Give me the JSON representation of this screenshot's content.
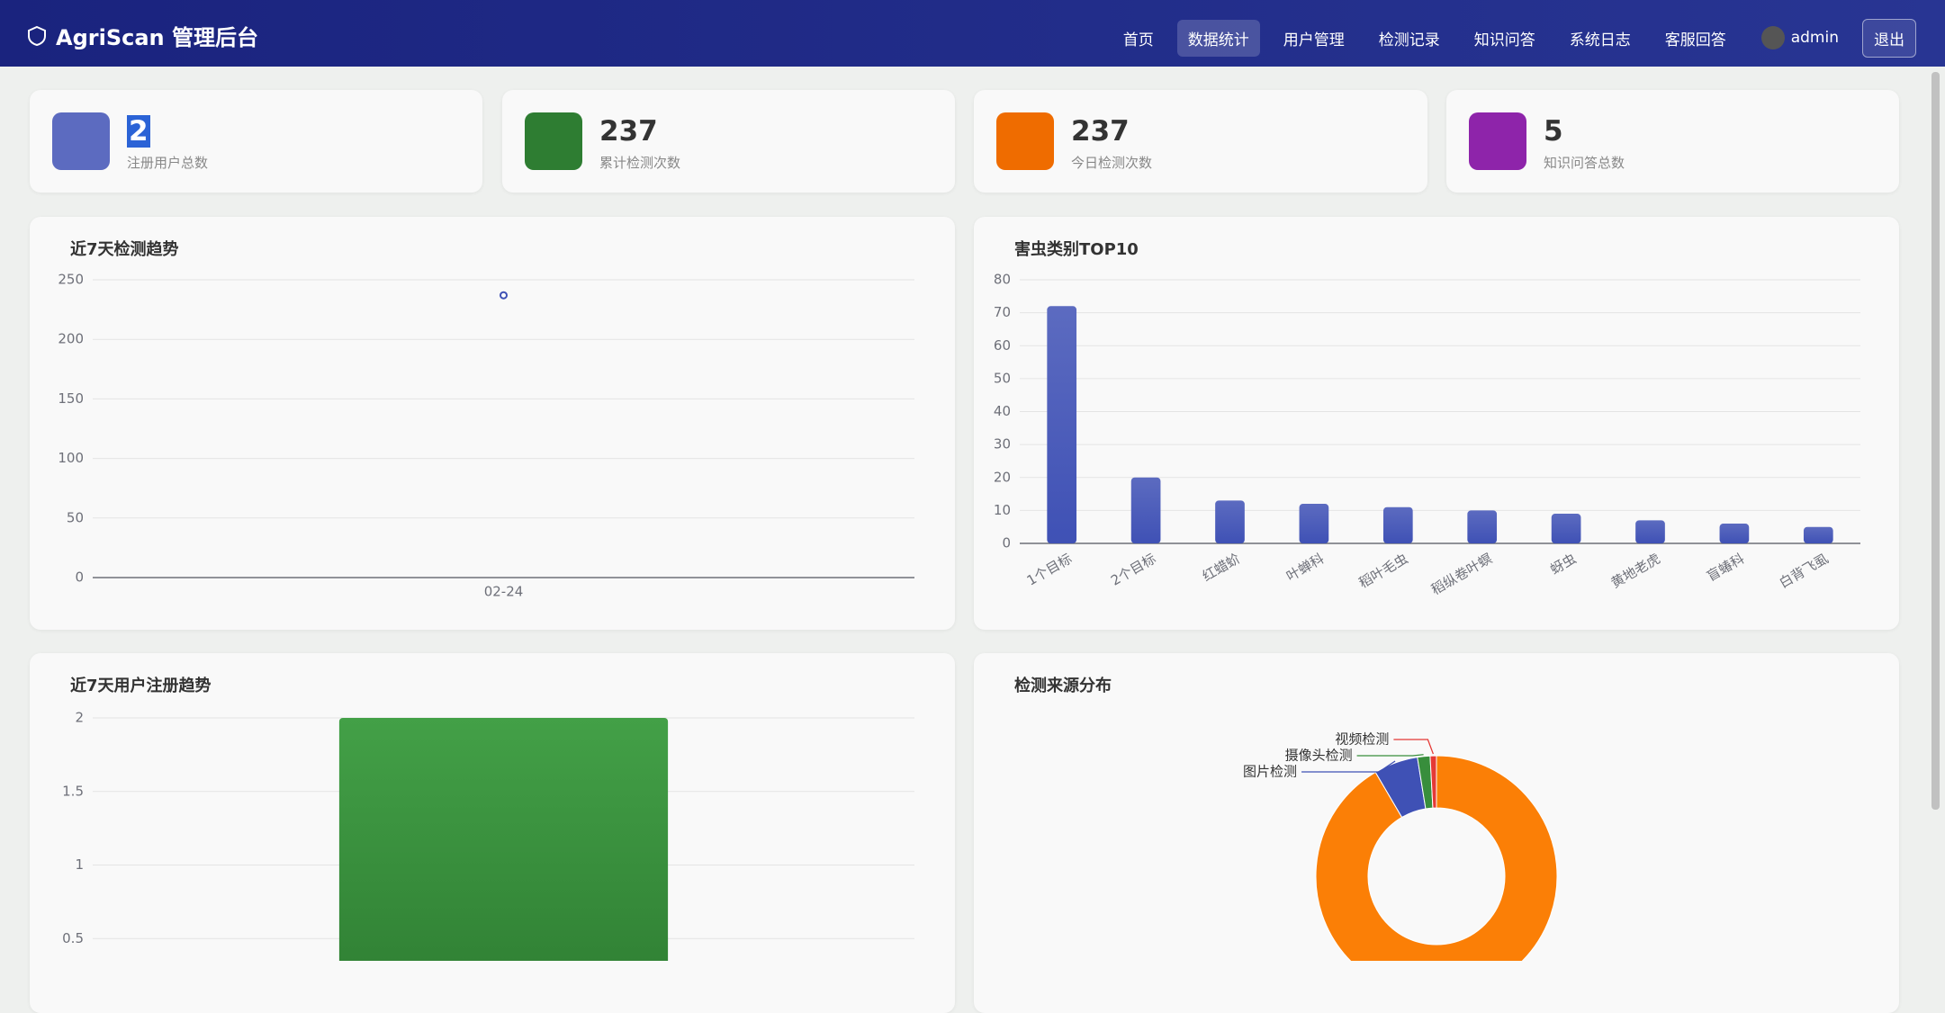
{
  "header": {
    "title": "AgriScan 管理后台",
    "nav": [
      "首页",
      "数据统计",
      "用户管理",
      "检测记录",
      "知识问答",
      "系统日志",
      "客服回答"
    ],
    "user": "admin",
    "logout": "退出"
  },
  "stats": [
    {
      "value": 2,
      "label": "注册用户总数"
    },
    {
      "value": 237,
      "label": "累计检测次数"
    },
    {
      "value": 237,
      "label": "今日检测次数"
    },
    {
      "value": 5,
      "label": "知识问答总数"
    }
  ],
  "chart_data": [
    {
      "type": "line",
      "title": "近7天检测趋势",
      "categories": [
        "02-24"
      ],
      "values": [
        237
      ],
      "color": "#3f51b5",
      "ylim": [
        0,
        250
      ],
      "yticks": [
        0,
        50,
        100,
        150,
        200,
        250
      ],
      "grid": true
    },
    {
      "type": "bar",
      "title": "害虫类别TOP10",
      "categories": [
        "1个目标",
        "2个目标",
        "红蜡蚧",
        "叶蝉科",
        "稻叶毛虫",
        "稻纵卷叶螟",
        "蚜虫",
        "黄地老虎",
        "盲蝽科",
        "白背飞虱"
      ],
      "values": [
        72,
        20,
        13,
        12,
        11,
        10,
        9,
        7,
        6,
        5
      ],
      "color": "#3f51b5",
      "ylim": [
        0,
        80
      ],
      "yticks": [
        0,
        10,
        20,
        30,
        40,
        50,
        60,
        70,
        80
      ],
      "grid": true
    },
    {
      "type": "bar",
      "title": "近7天用户注册趋势",
      "categories": [
        null
      ],
      "values": [
        2
      ],
      "color": "#388e3c",
      "ylim": [
        0,
        2
      ],
      "yticks": [
        0.5,
        1,
        1.5,
        2
      ],
      "grid": true
    },
    {
      "type": "pie",
      "title": "检测来源分布",
      "categories": [
        null,
        "图片检测",
        "摄像头检测",
        "视频检测"
      ],
      "values": [
        217,
        14,
        4,
        2
      ],
      "colors": [
        "#fb7f06",
        "#3f51b5",
        "#388e3c",
        "#e53935"
      ]
    }
  ]
}
